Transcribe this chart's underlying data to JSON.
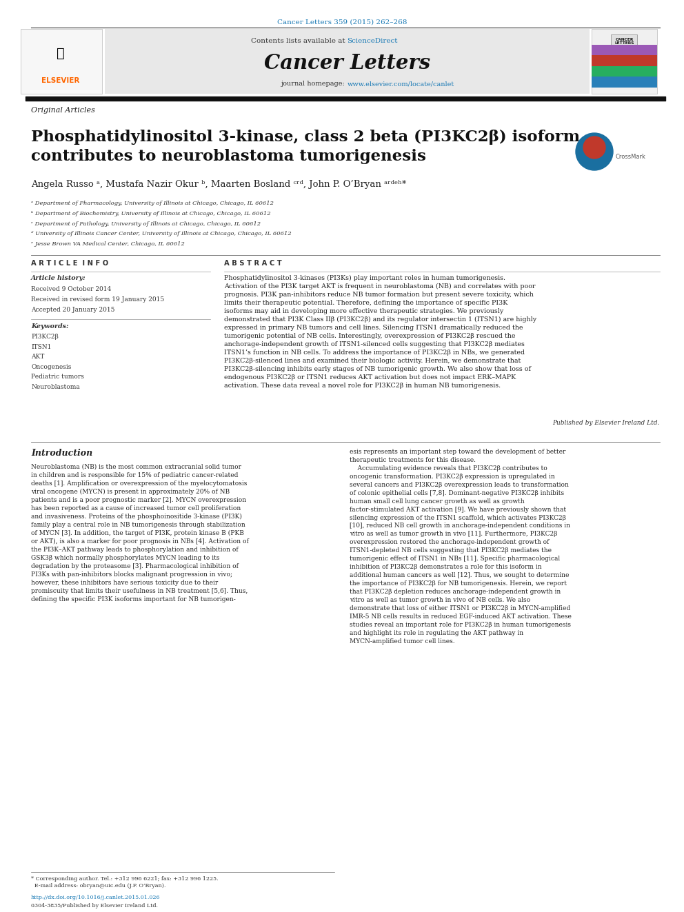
{
  "page_width": 9.92,
  "page_height": 13.23,
  "background_color": "#ffffff",
  "top_citation": "Cancer Letters 359 (2015) 262–268",
  "top_citation_color": "#1a7ab5",
  "journal_header_bg": "#e8e8e8",
  "sciencedirect_color": "#1a7ab5",
  "journal_name": "Cancer Letters",
  "journal_homepage_url_color": "#1a7ab5",
  "section_label": "Original Articles",
  "paper_title": "Phosphatidylinositol 3-kinase, class 2 beta (PI3KC2β) isoform\ncontributes to neuroblastoma tumorigenesis",
  "authors": "Angela Russo ᵃ, Mustafa Nazir Okur ᵇ, Maarten Bosland ᶜʳᵈ, John P. O’Bryan ᵃʳᵈᵉʰ*",
  "affiliations": [
    "ᵃ Department of Pharmacology, University of Illinois at Chicago, Chicago, IL 60612",
    "ᵇ Department of Biochemistry, University of Illinois at Chicago, Chicago, IL 60612",
    "ᶜ Department of Pathology, University of Illinois at Chicago, Chicago, IL 60612",
    "ᵈ University of Illinois Cancer Center, University of Illinois at Chicago, Chicago, IL 60612",
    "ᵉ Jesse Brown VA Medical Center, Chicago, IL 60612"
  ],
  "article_info_label": "A R T I C L E  I N F O",
  "article_history_label": "Article history:",
  "received_1": "Received 9 October 2014",
  "received_2": "Received in revised form 19 January 2015",
  "accepted": "Accepted 20 January 2015",
  "keywords_label": "Keywords:",
  "keywords": [
    "PI3KC2β",
    "ITSN1",
    "AKT",
    "Oncogenesis",
    "Pediatric tumors",
    "Neuroblastoma"
  ],
  "abstract_label": "A B S T R A C T",
  "abstract_text": "Phosphatidylinositol 3-kinases (PI3Ks) play important roles in human tumorigenesis. Activation of the PI3K target AKT is frequent in neuroblastoma (NB) and correlates with poor prognosis. PI3K pan-inhibitors reduce NB tumor formation but present severe toxicity, which limits their therapeutic potential. Therefore, defining the importance of specific PI3K isoforms may aid in developing more effective therapeutic strategies. We previously demonstrated that PI3K Class IIβ (PI3KC2β) and its regulator intersectin 1 (ITSN1) are highly expressed in primary NB tumors and cell lines. Silencing ITSN1 dramatically reduced the tumorigenic potential of NB cells. Interestingly, overexpression of PI3KC2β rescued the anchorage-independent growth of ITSN1-silenced cells suggesting that PI3KC2β mediates ITSN1’s function in NB cells. To address the importance of PI3KC2β in NBs, we generated PI3KC2β-silenced lines and examined their biologic activity. Herein, we demonstrate that PI3KC2β-silencing inhibits early stages of NB tumorigenic growth. We also show that loss of endogenous PI3KC2β or ITSN1 reduces AKT activation but does not impact ERK–MAPK activation. These data reveal a novel role for PI3KC2β in human NB tumorigenesis.",
  "published_by": "Published by Elsevier Ireland Ltd.",
  "intro_label": "Introduction",
  "intro_left_text": "Neuroblastoma (NB) is the most common extracranial solid tumor in children and is responsible for 15% of pediatric cancer-related deaths [1]. Amplification or overexpression of the myelocytomatosis viral oncogene (MYCN) is present in approximately 20% of NB patients and is a poor prognostic marker [2]. MYCN overexpression has been reported as a cause of increased tumor cell proliferation and invasiveness. Proteins of the phosphoinositide 3-kinase (PI3K) family play a central role in NB tumorigenesis through stabilization of MYCN [3]. In addition, the target of PI3K, protein kinase B (PKB or AKT), is also a marker for poor prognosis in NBs [4]. Activation of the PI3K–AKT pathway leads to phosphorylation and inhibition of GSK3β which normally phosphorylates MYCN leading to its degradation by the proteasome [3]. Pharmacological inhibition of PI3Ks with pan-inhibitors blocks malignant progression in vivo; however, these inhibitors have serious toxicity due to their promiscuity that limits their usefulness in NB treatment [5,6]. Thus, defining the specific PI3K isoforms important for NB tumorigen-",
  "intro_right_text": "esis represents an important step toward the development of better therapeutic treatments for this disease.\n    Accumulating evidence reveals that PI3KC2β contributes to oncogenic transformation. PI3KC2β expression is upregulated in several cancers and PI3KC2β overexpression leads to transformation of colonic epithelial cells [7,8]. Dominant-negative PI3KC2β inhibits human small cell lung cancer growth as well as growth factor-stimulated AKT activation [9]. We have previously shown that silencing expression of the ITSN1 scaffold, which activates PI3KC2β [10], reduced NB cell growth in anchorage-independent conditions in vitro as well as tumor growth in vivo [11]. Furthermore, PI3KC2β overexpression restored the anchorage-independent growth of ITSN1-depleted NB cells suggesting that PI3KC2β mediates the tumorigenic effect of ITSN1 in NBs [11]. Specific pharmacological inhibition of PI3KC2β demonstrates a role for this isoform in additional human cancers as well [12]. Thus, we sought to determine the importance of PI3KC2β for NB tumorigenesis. Herein, we report that PI3KC2β depletion reduces anchorage-independent growth in vitro as well as tumor growth in vivo of NB cells. We also demonstrate that loss of either ITSN1 or PI3KC2β in MYCN-amplified IMR-5 NB cells results in reduced EGF-induced AKT activation. These studies reveal an important role for PI3KC2β in human tumorigenesis and highlight its role in regulating the AKT pathway in MYCN-amplified tumor cell lines.",
  "footnote_text": "* Corresponding author. Tel.: +312 996 6221; fax: +312 996 1225.\n  E-mail address: obryan@uic.edu (J.P. O’Bryan).",
  "doi_text": "http://dx.doi.org/10.1016/j.canlet.2015.01.026",
  "issn_text": "0304-3835/Published by Elsevier Ireland Ltd.",
  "link_color": "#1a7ab5",
  "elsevier_color": "#ff6600",
  "banner_colors": [
    "#9b59b6",
    "#c0392b",
    "#27ae60",
    "#2980b9"
  ]
}
